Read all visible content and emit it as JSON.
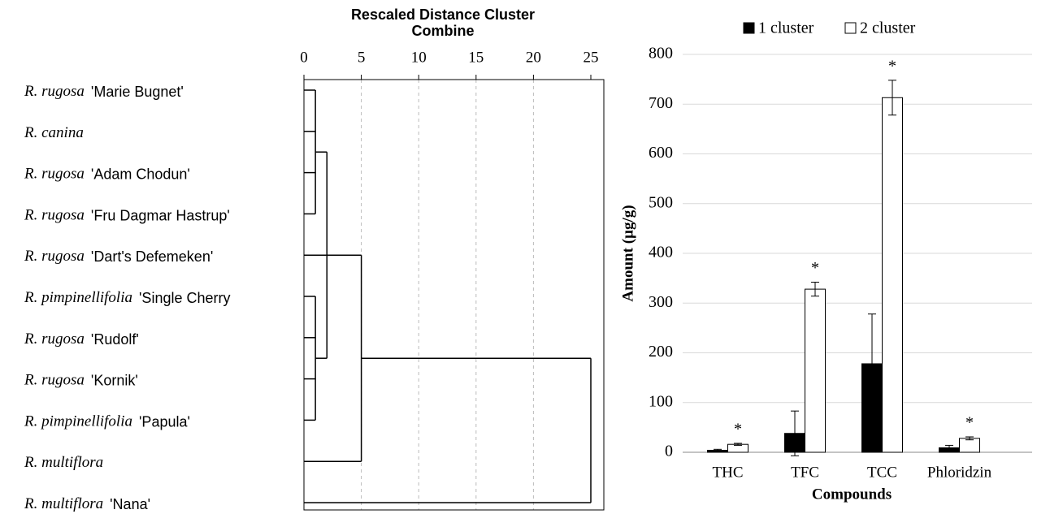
{
  "chart_data": [
    {
      "type": "dendrogram",
      "title": [
        "Rescaled Distance Cluster",
        "Combine"
      ],
      "xlim": [
        0,
        25
      ],
      "xticks": [
        0,
        5,
        10,
        15,
        20,
        25
      ],
      "grid": true,
      "leaves": [
        {
          "species": "R. rugosa",
          "cultivar": "'Marie Bugnet'"
        },
        {
          "species": "R. canina"
        },
        {
          "species": "R. rugosa",
          "cultivar": "'Adam Chodun'"
        },
        {
          "species": "R. rugosa",
          "cultivar": "'Fru Dagmar Hastrup'"
        },
        {
          "species": "R. rugosa",
          "cultivar": "'Dart's Defemeken'"
        },
        {
          "species": "R. pimpinellifolia",
          "cultivar": "'Single Cherry"
        },
        {
          "species": "R. rugosa",
          "cultivar": "'Rudolf'"
        },
        {
          "species": "R. rugosa",
          "cultivar": "'Kornik'"
        },
        {
          "species": "R. pimpinellifolia",
          "cultivar": "'Papula'"
        },
        {
          "species": "R. multiflora"
        },
        {
          "species": "R. multiflora",
          "cultivar": "'Nana'"
        }
      ],
      "merges": [
        {
          "height": 1,
          "leaves": [
            0,
            1,
            2,
            3
          ],
          "clusters": []
        },
        {
          "height": 1,
          "leaves": [
            5,
            6,
            7,
            8
          ],
          "clusters": []
        },
        {
          "height": 2,
          "leaves": [],
          "clusters": [
            0,
            1
          ]
        },
        {
          "height": 5,
          "leaves": [
            4,
            9
          ],
          "clusters": [
            2
          ]
        },
        {
          "height": 25,
          "leaves": [
            10
          ],
          "clusters": [
            3
          ]
        }
      ]
    },
    {
      "type": "bar",
      "categories": [
        "THC",
        "TFC",
        "TCC",
        "Phloridzin"
      ],
      "x_label": "Compounds",
      "y_label": "Amount  (µg/g)",
      "ylim": [
        0,
        800
      ],
      "yticks": [
        0,
        100,
        200,
        300,
        400,
        500,
        600,
        700,
        800
      ],
      "grid": true,
      "series": [
        {
          "name": "1 cluster",
          "color": "#000000",
          "values": [
            4,
            38,
            178,
            9
          ],
          "errors": [
            2,
            45,
            100,
            5
          ]
        },
        {
          "name": "2 cluster",
          "color": "#ffffff",
          "values": [
            16,
            328,
            713,
            28
          ],
          "errors": [
            2,
            14,
            35,
            3
          ],
          "annotations": [
            "*",
            "*",
            "*",
            "*"
          ]
        }
      ]
    }
  ]
}
